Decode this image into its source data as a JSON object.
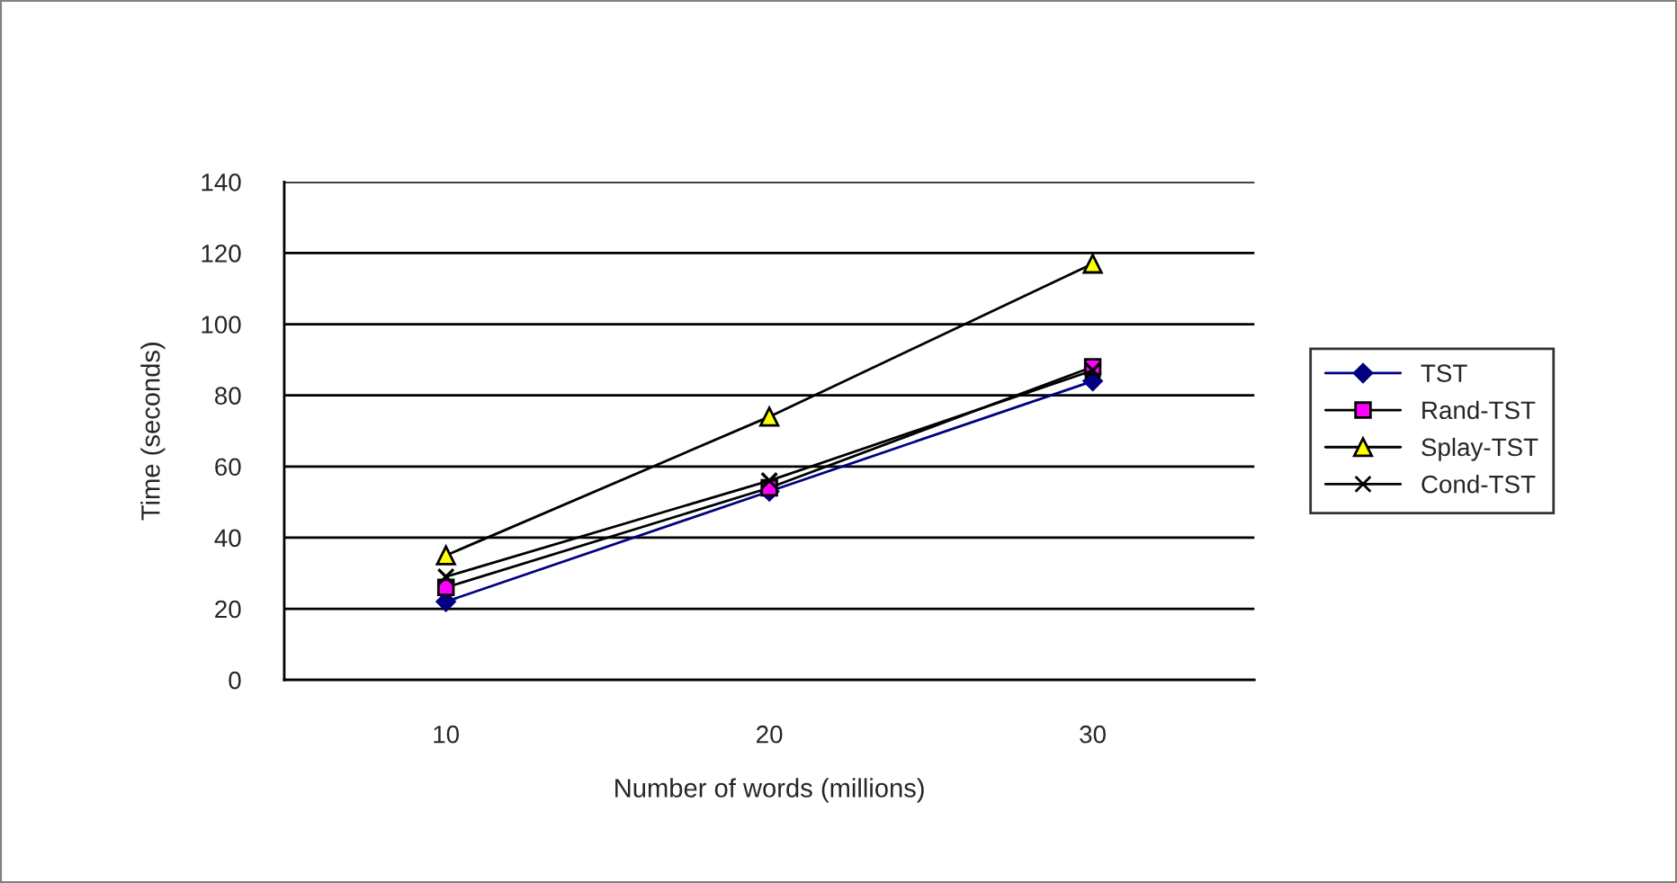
{
  "chart_data": {
    "type": "line",
    "xlabel": "Number of words (millions)",
    "ylabel": "Time (seconds)",
    "categories": [
      "10",
      "20",
      "30"
    ],
    "series": [
      {
        "name": "TST",
        "color": "#000080",
        "colors": [
          "#000080",
          "#000080",
          "#000080"
        ],
        "marker": "diamond",
        "values": [
          22,
          53,
          84
        ]
      },
      {
        "name": "Rand-TST",
        "color": "#000000",
        "colors": [
          "#ff00ff",
          "#ff00ff",
          "#ff00ff"
        ],
        "marker": "square",
        "values": [
          26,
          54,
          88
        ]
      },
      {
        "name": "Splay-TST",
        "color": "#000000",
        "colors": [
          "#ffff00",
          "#ffff00",
          "#ffff00"
        ],
        "marker": "triangle",
        "values": [
          35,
          74,
          117
        ]
      },
      {
        "name": "Cond-TST",
        "color": "#000000",
        "marker": "cross",
        "values": [
          29,
          56,
          87
        ]
      }
    ],
    "ylim": [
      0,
      140
    ],
    "yticks": [
      0,
      20,
      40,
      60,
      80,
      100,
      120,
      140
    ],
    "grid": "y",
    "legend": "right",
    "line_style": "solid"
  }
}
